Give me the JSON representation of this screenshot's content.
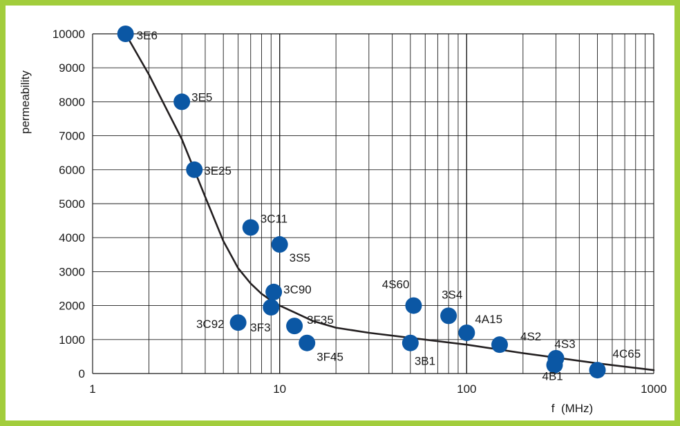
{
  "chart_data": {
    "type": "scatter",
    "title": "",
    "xlabel": "f  (MHz)",
    "ylabel": "permeability",
    "xscale": "log",
    "xlim": [
      1,
      1000
    ],
    "ylim": [
      0,
      10000
    ],
    "grid": true,
    "x_ticks": [
      "1",
      "10",
      "100",
      "1000"
    ],
    "y_ticks": [
      "0",
      "1000",
      "2000",
      "3000",
      "4000",
      "5000",
      "6000",
      "7000",
      "8000",
      "9000",
      "10000"
    ],
    "points": [
      {
        "label": "3E6",
        "x": 1.5,
        "y": 10000
      },
      {
        "label": "3E5",
        "x": 3.0,
        "y": 8000
      },
      {
        "label": "3E25",
        "x": 3.5,
        "y": 6000
      },
      {
        "label": "3C11",
        "x": 7.0,
        "y": 4300
      },
      {
        "label": "3S5",
        "x": 10.0,
        "y": 3800
      },
      {
        "label": "3C90",
        "x": 9.3,
        "y": 2400
      },
      {
        "label": "3F3",
        "x": 9.0,
        "y": 1950
      },
      {
        "label": "3C92",
        "x": 6.0,
        "y": 1500
      },
      {
        "label": "3F35",
        "x": 12.0,
        "y": 1400
      },
      {
        "label": "3F45",
        "x": 14.0,
        "y": 900
      },
      {
        "label": "4S60",
        "x": 52,
        "y": 2000
      },
      {
        "label": "3B1",
        "x": 50,
        "y": 900
      },
      {
        "label": "3S4",
        "x": 80,
        "y": 1700
      },
      {
        "label": "4A15",
        "x": 100,
        "y": 1200
      },
      {
        "label": "4S2",
        "x": 150,
        "y": 850
      },
      {
        "label": "4S3",
        "x": 300,
        "y": 450
      },
      {
        "label": "4B1",
        "x": 295,
        "y": 250
      },
      {
        "label": "4C65",
        "x": 500,
        "y": 100
      }
    ],
    "trend_line": {
      "x": [
        1.5,
        2,
        3,
        4,
        5,
        6,
        7,
        8,
        9,
        10,
        12,
        15,
        20,
        30,
        50,
        100,
        200,
        500,
        1000
      ],
      "y": [
        10000,
        8800,
        6900,
        5200,
        3900,
        3100,
        2650,
        2350,
        2150,
        2000,
        1800,
        1550,
        1350,
        1200,
        1050,
        850,
        600,
        300,
        100
      ]
    },
    "colors": {
      "marker": "#0b57a4",
      "line": "#231f20",
      "grid": "#1a1a1a",
      "frame": "#a2cd3c"
    }
  }
}
